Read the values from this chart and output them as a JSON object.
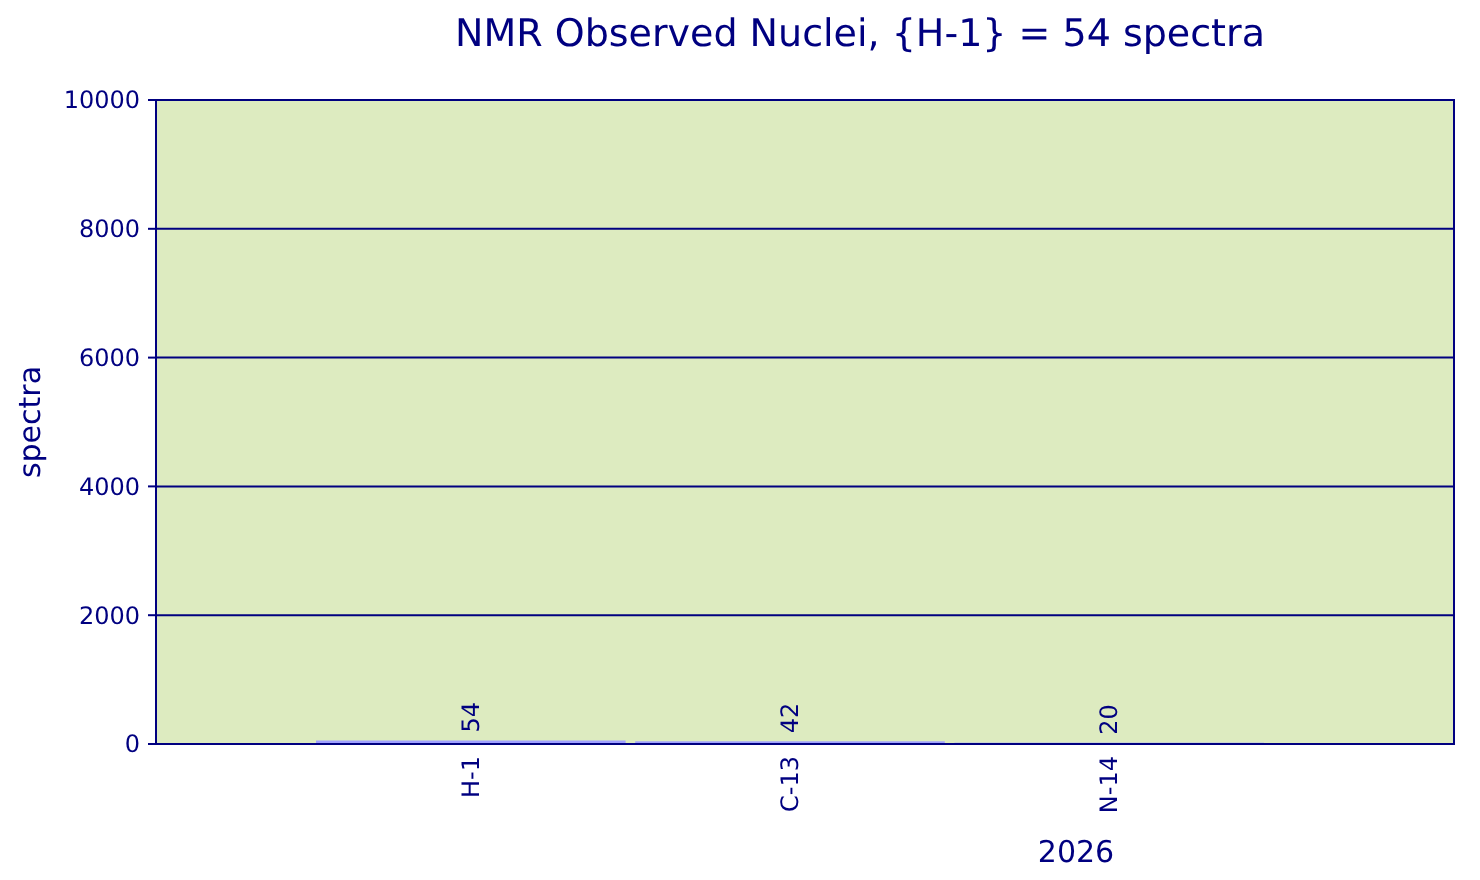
{
  "chart_data": {
    "type": "bar",
    "title": "NMR Observed Nuclei, {H-1} = 54 spectra",
    "categories": [
      "H-1",
      "C-13",
      "N-14"
    ],
    "values": [
      54,
      42,
      20
    ],
    "color": "#a0a0ff",
    "xlabel": "2026",
    "ylabel": "spectra",
    "ylim": [
      0,
      10000
    ],
    "yticks": [
      0,
      2000,
      4000,
      6000,
      8000,
      10000
    ],
    "grid": "y",
    "data_labels": true
  }
}
